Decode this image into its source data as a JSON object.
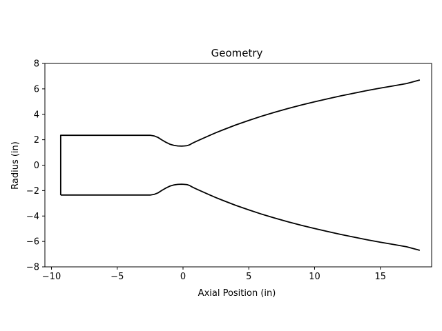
{
  "chart_data": {
    "type": "line",
    "title": "Geometry",
    "xlabel": "Axial Position (in)",
    "ylabel": "Radius (in)",
    "xlim": [
      -10.5,
      18.9
    ],
    "ylim": [
      -8,
      8
    ],
    "xticks": [
      -10,
      -5,
      0,
      5,
      10,
      15
    ],
    "yticks": [
      -8,
      -6,
      -4,
      -2,
      0,
      2,
      4,
      6,
      8
    ],
    "xtick_labels": [
      "−10",
      "−5",
      "0",
      "5",
      "10",
      "15"
    ],
    "ytick_labels": [
      "−8",
      "−6",
      "−4",
      "−2",
      "0",
      "2",
      "4",
      "6",
      "8"
    ],
    "grid": false,
    "line_color": "#000000",
    "series": [
      {
        "x": [
          -9.3,
          -9.3,
          -2.5,
          -2.2,
          -1.9,
          -1.6,
          -1.3,
          -1.0,
          -0.7,
          -0.4,
          -0.1,
          0.1,
          0.3,
          0.5,
          0.7,
          1.0,
          1.5,
          2.0,
          2.5,
          3.0,
          4.0,
          5.0,
          6.0,
          7.0,
          8.0,
          9.0,
          10.0,
          11.0,
          12.0,
          13.0,
          14.0,
          15.0,
          16.0,
          17.0,
          18.0
        ],
        "y": [
          -2.35,
          2.35,
          2.35,
          2.3,
          2.18,
          1.98,
          1.8,
          1.65,
          1.56,
          1.51,
          1.5,
          1.51,
          1.53,
          1.6,
          1.72,
          1.87,
          2.1,
          2.33,
          2.55,
          2.76,
          3.16,
          3.52,
          3.86,
          4.17,
          4.46,
          4.73,
          4.98,
          5.22,
          5.45,
          5.66,
          5.87,
          6.06,
          6.24,
          6.42,
          6.7
        ]
      },
      {
        "x": [
          -9.3,
          -2.5,
          -2.2,
          -1.9,
          -1.6,
          -1.3,
          -1.0,
          -0.7,
          -0.4,
          -0.1,
          0.1,
          0.3,
          0.5,
          0.7,
          1.0,
          1.5,
          2.0,
          2.5,
          3.0,
          4.0,
          5.0,
          6.0,
          7.0,
          8.0,
          9.0,
          10.0,
          11.0,
          12.0,
          13.0,
          14.0,
          15.0,
          16.0,
          17.0,
          18.0
        ],
        "y": [
          -2.35,
          -2.35,
          -2.3,
          -2.18,
          -1.98,
          -1.8,
          -1.65,
          -1.56,
          -1.51,
          -1.5,
          -1.51,
          -1.53,
          -1.6,
          -1.72,
          -1.87,
          -2.1,
          -2.33,
          -2.55,
          -2.76,
          -3.16,
          -3.52,
          -3.86,
          -4.17,
          -4.46,
          -4.73,
          -4.98,
          -5.22,
          -5.45,
          -5.66,
          -5.87,
          -6.06,
          -6.24,
          -6.42,
          -6.7
        ]
      }
    ]
  }
}
